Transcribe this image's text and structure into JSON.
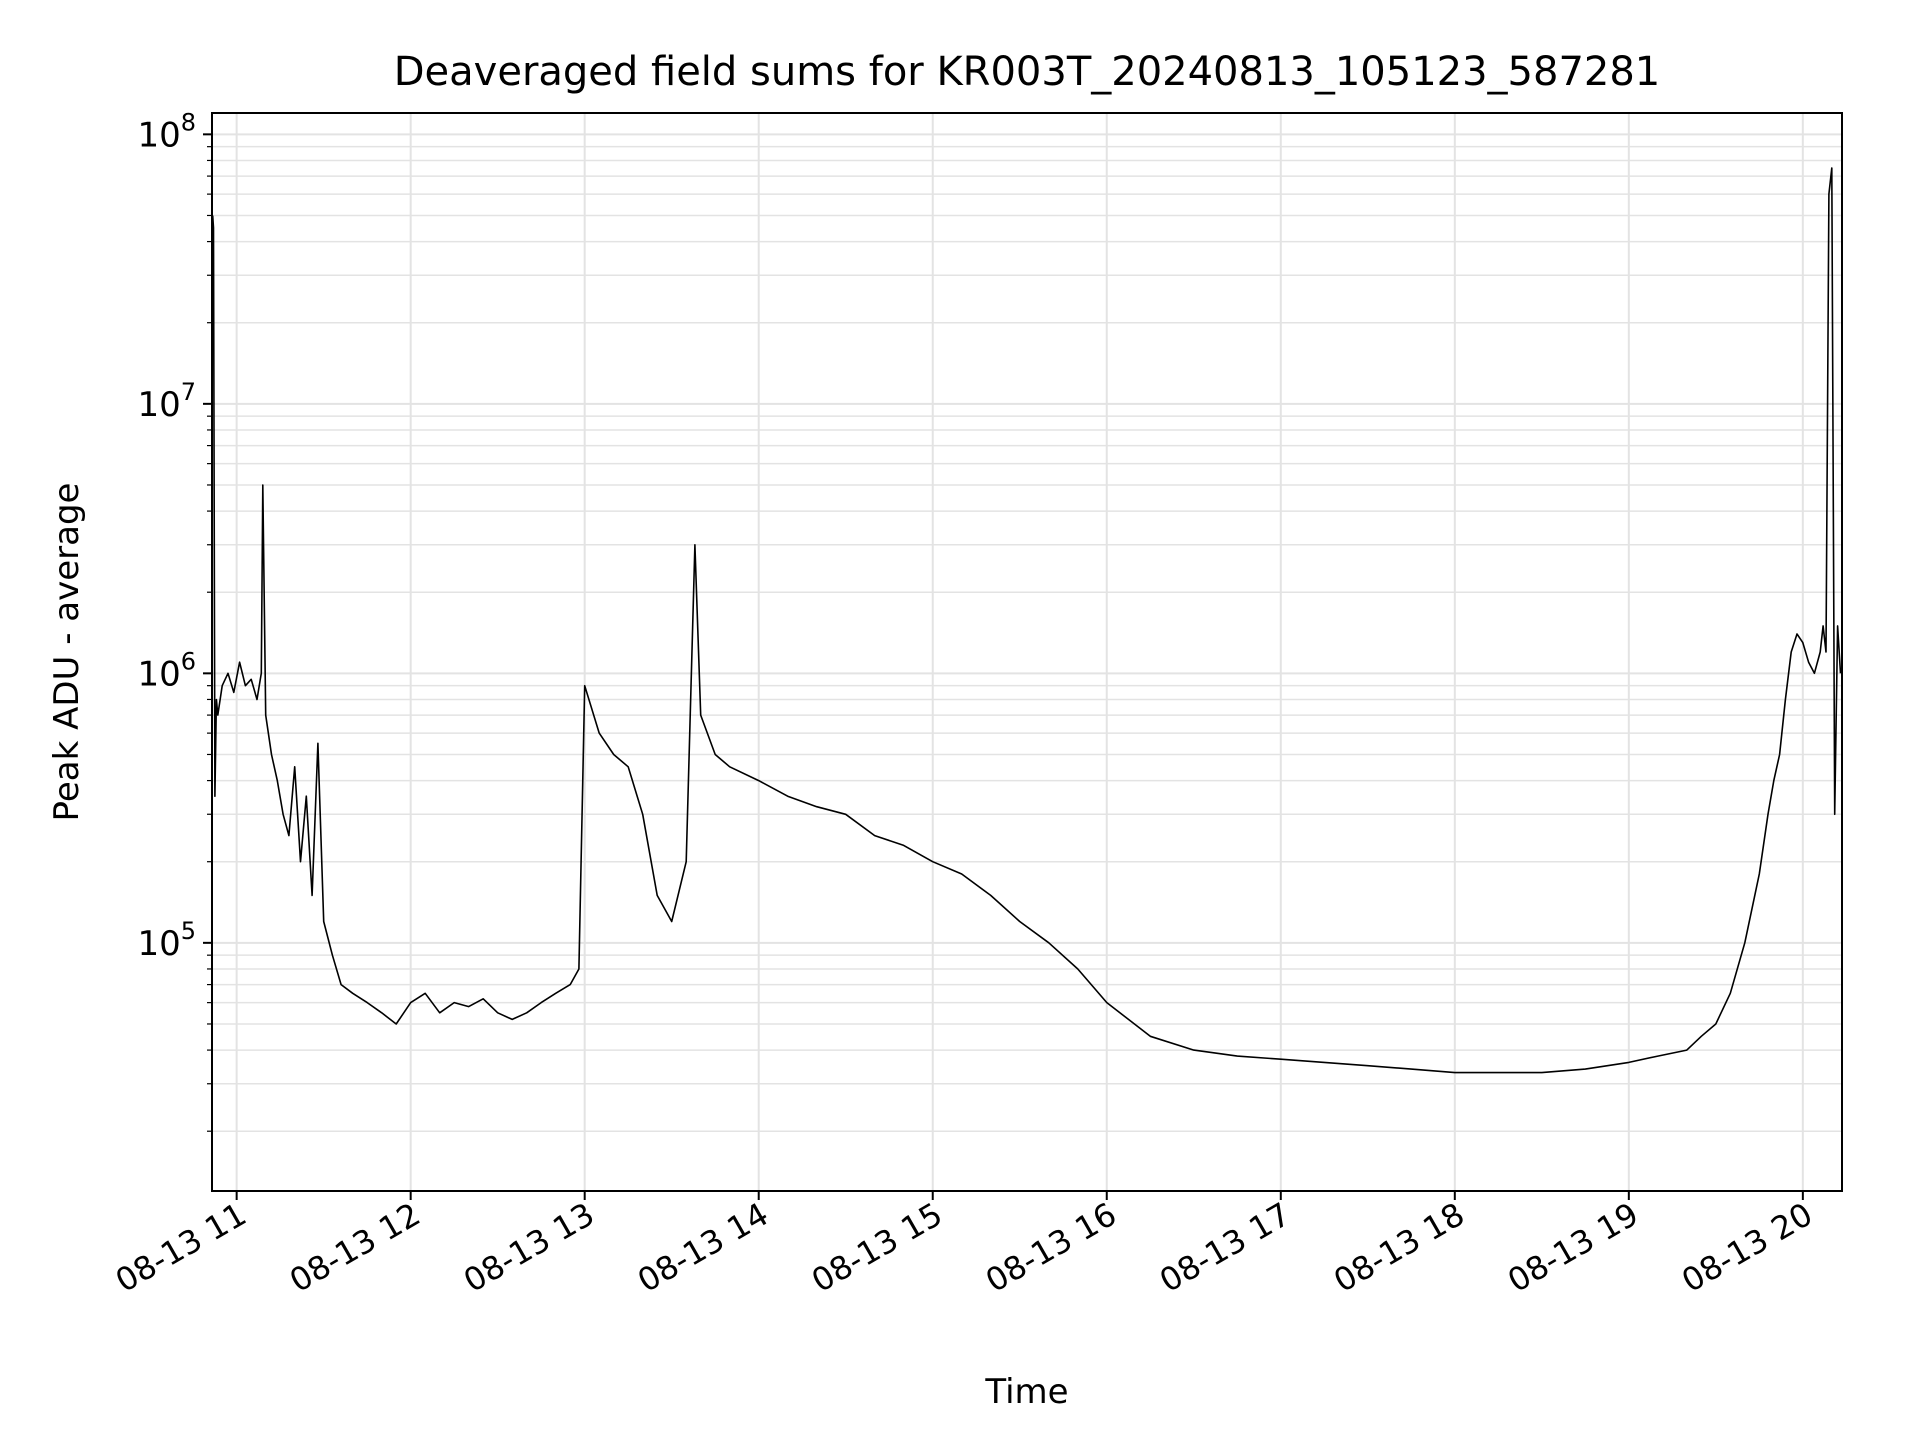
{
  "chart_data": {
    "type": "line",
    "title": "Deaveraged field sums for KR003T_20240813_105123_587281",
    "xlabel": "Time",
    "ylabel": "Peak ADU - average",
    "yscale": "log",
    "ylim": [
      12000,
      120000000
    ],
    "xlim": [
      "2024-08-13T10:51:30",
      "2024-08-13T20:13:30"
    ],
    "grid": true,
    "xticks": [
      {
        "value": "2024-08-13T11:00",
        "label": "08-13 11"
      },
      {
        "value": "2024-08-13T12:00",
        "label": "08-13 12"
      },
      {
        "value": "2024-08-13T13:00",
        "label": "08-13 13"
      },
      {
        "value": "2024-08-13T14:00",
        "label": "08-13 14"
      },
      {
        "value": "2024-08-13T15:00",
        "label": "08-13 15"
      },
      {
        "value": "2024-08-13T16:00",
        "label": "08-13 16"
      },
      {
        "value": "2024-08-13T17:00",
        "label": "08-13 17"
      },
      {
        "value": "2024-08-13T18:00",
        "label": "08-13 18"
      },
      {
        "value": "2024-08-13T19:00",
        "label": "08-13 19"
      },
      {
        "value": "2024-08-13T20:00",
        "label": "08-13 20"
      }
    ],
    "yticks": [
      {
        "value": 100000,
        "base": "10",
        "exp": "5"
      },
      {
        "value": 1000000,
        "base": "10",
        "exp": "6"
      },
      {
        "value": 10000000,
        "base": "10",
        "exp": "7"
      },
      {
        "value": 100000000,
        "base": "10",
        "exp": "8"
      }
    ],
    "line_color": "#000000",
    "grid_color": "#e3e3e3",
    "series": [
      {
        "x": [
          "2024-08-13T10:51:45",
          "2024-08-13T10:52:00",
          "2024-08-13T10:52:30",
          "2024-08-13T10:53:00",
          "2024-08-13T10:53:30",
          "2024-08-13T10:55:00",
          "2024-08-13T10:57:00",
          "2024-08-13T10:59:00",
          "2024-08-13T11:01:00",
          "2024-08-13T11:03:00",
          "2024-08-13T11:05:00",
          "2024-08-13T11:07:00",
          "2024-08-13T11:08:30",
          "2024-08-13T11:09:00",
          "2024-08-13T11:10:00",
          "2024-08-13T11:12:00",
          "2024-08-13T11:14:00",
          "2024-08-13T11:16:00",
          "2024-08-13T11:18:00",
          "2024-08-13T11:20:00",
          "2024-08-13T11:22:00",
          "2024-08-13T11:24:00",
          "2024-08-13T11:26:00",
          "2024-08-13T11:28:00",
          "2024-08-13T11:30:00",
          "2024-08-13T11:33:00",
          "2024-08-13T11:36:00",
          "2024-08-13T11:40:00",
          "2024-08-13T11:45:00",
          "2024-08-13T11:50:00",
          "2024-08-13T11:55:00",
          "2024-08-13T12:00:00",
          "2024-08-13T12:05:00",
          "2024-08-13T12:10:00",
          "2024-08-13T12:15:00",
          "2024-08-13T12:20:00",
          "2024-08-13T12:25:00",
          "2024-08-13T12:30:00",
          "2024-08-13T12:35:00",
          "2024-08-13T12:40:00",
          "2024-08-13T12:45:00",
          "2024-08-13T12:50:00",
          "2024-08-13T12:55:00",
          "2024-08-13T12:58:00",
          "2024-08-13T13:00:00",
          "2024-08-13T13:05:00",
          "2024-08-13T13:10:00",
          "2024-08-13T13:15:00",
          "2024-08-13T13:20:00",
          "2024-08-13T13:25:00",
          "2024-08-13T13:30:00",
          "2024-08-13T13:35:00",
          "2024-08-13T13:38:00",
          "2024-08-13T13:40:00",
          "2024-08-13T13:45:00",
          "2024-08-13T13:50:00",
          "2024-08-13T14:00:00",
          "2024-08-13T14:10:00",
          "2024-08-13T14:20:00",
          "2024-08-13T14:30:00",
          "2024-08-13T14:40:00",
          "2024-08-13T14:50:00",
          "2024-08-13T15:00:00",
          "2024-08-13T15:10:00",
          "2024-08-13T15:20:00",
          "2024-08-13T15:30:00",
          "2024-08-13T15:40:00",
          "2024-08-13T15:50:00",
          "2024-08-13T16:00:00",
          "2024-08-13T16:15:00",
          "2024-08-13T16:30:00",
          "2024-08-13T16:45:00",
          "2024-08-13T17:00:00",
          "2024-08-13T17:15:00",
          "2024-08-13T17:30:00",
          "2024-08-13T17:45:00",
          "2024-08-13T18:00:00",
          "2024-08-13T18:15:00",
          "2024-08-13T18:30:00",
          "2024-08-13T18:45:00",
          "2024-08-13T19:00:00",
          "2024-08-13T19:10:00",
          "2024-08-13T19:20:00",
          "2024-08-13T19:25:00",
          "2024-08-13T19:30:00",
          "2024-08-13T19:35:00",
          "2024-08-13T19:40:00",
          "2024-08-13T19:45:00",
          "2024-08-13T19:48:00",
          "2024-08-13T19:50:00",
          "2024-08-13T19:52:00",
          "2024-08-13T19:54:00",
          "2024-08-13T19:56:00",
          "2024-08-13T19:58:00",
          "2024-08-13T20:00:00",
          "2024-08-13T20:02:00",
          "2024-08-13T20:04:00",
          "2024-08-13T20:06:00",
          "2024-08-13T20:07:00",
          "2024-08-13T20:08:00",
          "2024-08-13T20:09:00",
          "2024-08-13T20:10:00",
          "2024-08-13T20:11:00",
          "2024-08-13T20:12:00",
          "2024-08-13T20:13:00"
        ],
        "y": [
          50000000,
          45000000,
          350000,
          800000,
          700000,
          900000,
          1000000,
          850000,
          1100000,
          900000,
          950000,
          800000,
          1000000,
          5000000,
          700000,
          500000,
          400000,
          300000,
          250000,
          450000,
          200000,
          350000,
          150000,
          550000,
          120000,
          90000,
          70000,
          65000,
          60000,
          55000,
          50000,
          60000,
          65000,
          55000,
          60000,
          58000,
          62000,
          55000,
          52000,
          55000,
          60000,
          65000,
          70000,
          80000,
          900000,
          600000,
          500000,
          450000,
          300000,
          150000,
          120000,
          200000,
          3000000,
          700000,
          500000,
          450000,
          400000,
          350000,
          320000,
          300000,
          250000,
          230000,
          200000,
          180000,
          150000,
          120000,
          100000,
          80000,
          60000,
          45000,
          40000,
          38000,
          37000,
          36000,
          35000,
          34000,
          33000,
          33000,
          33000,
          34000,
          36000,
          38000,
          40000,
          45000,
          50000,
          65000,
          100000,
          180000,
          300000,
          400000,
          500000,
          800000,
          1200000,
          1400000,
          1300000,
          1100000,
          1000000,
          1200000,
          1500000,
          1200000,
          60000000,
          75000000,
          300000,
          1500000,
          1000000
        ]
      }
    ]
  }
}
